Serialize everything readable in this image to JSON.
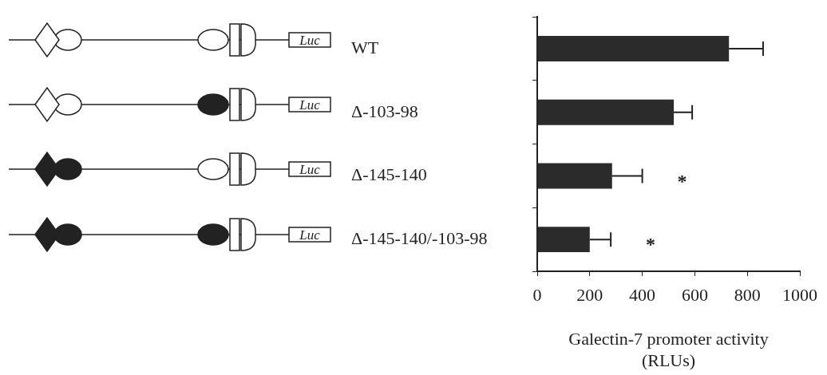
{
  "chart_data": {
    "type": "bar",
    "orientation": "horizontal",
    "categories": [
      "WT",
      "Δ-103-98",
      "Δ-145-140",
      "Δ-145-140/-103-98"
    ],
    "values": [
      730,
      520,
      285,
      200
    ],
    "errors": [
      130,
      70,
      115,
      80
    ],
    "color": "#2b2b2b",
    "xlim": [
      0,
      1000
    ],
    "xticks": [
      0,
      200,
      400,
      600,
      800,
      1000
    ],
    "xlabel": "Galectin-7 promoter activity (RLUs)",
    "annotations": [
      "Luc",
      "*",
      "*"
    ],
    "grid": false,
    "legend": false
  }
}
